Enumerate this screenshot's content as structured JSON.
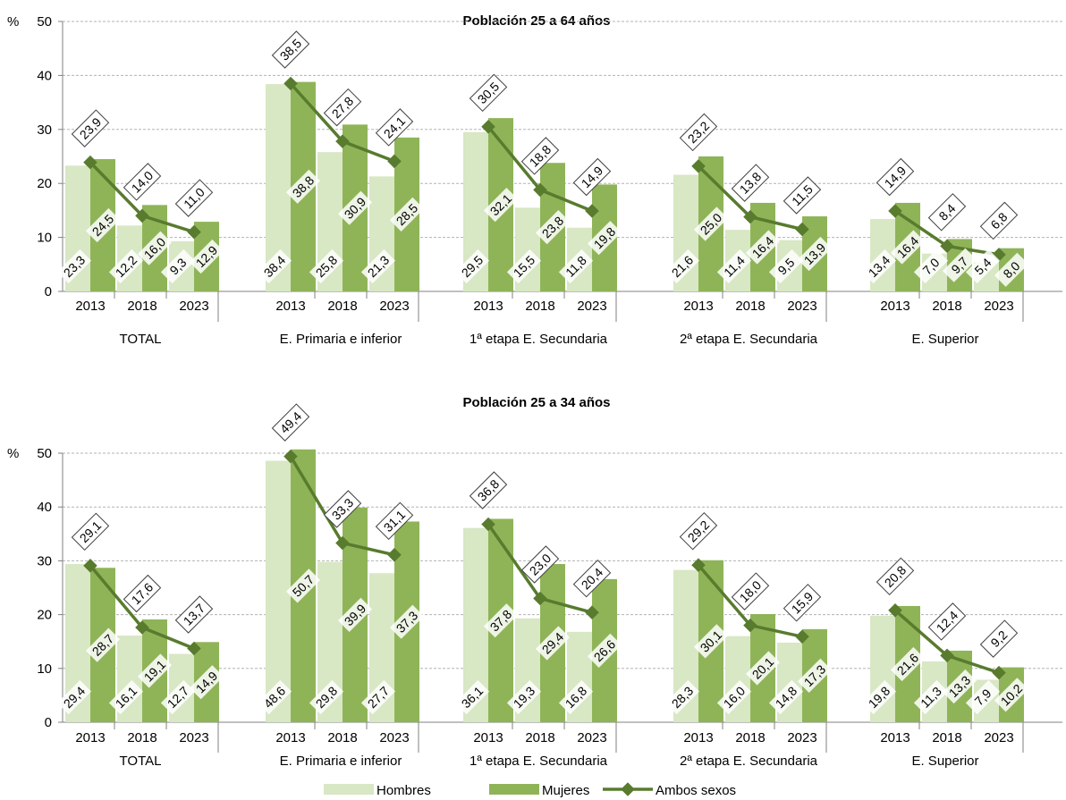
{
  "colors": {
    "hombres": "#d8e7c4",
    "mujeres": "#8fb458",
    "ambos": "#587b2e",
    "grid": "#b3b3b3",
    "axis": "#808080",
    "label_border": "#404040"
  },
  "legend": {
    "position": "bottom-center",
    "hombres": "Hombres",
    "mujeres": "Mujeres",
    "ambos": "Ambos sexos"
  },
  "chart_data": [
    {
      "type": "bar",
      "title": "Población 25 a 64 años",
      "ylabel": "%",
      "ylim": [
        0,
        50
      ],
      "yticks": [
        "0",
        "10",
        "20",
        "30",
        "40",
        "50"
      ],
      "grid": true,
      "groups": [
        "TOTAL",
        "E. Primaria e inferior",
        "1ª etapa E. Secundaria",
        "2ª etapa E. Secundaria",
        "E. Superior"
      ],
      "years": [
        "2013",
        "2018",
        "2023"
      ],
      "series": [
        {
          "name": "Hombres",
          "type": "bar",
          "values": [
            23.3,
            12.2,
            9.3,
            38.4,
            25.8,
            21.3,
            29.5,
            15.5,
            11.8,
            21.6,
            11.4,
            9.5,
            13.4,
            7.0,
            5.4
          ],
          "labels": [
            "23,3",
            "12,2",
            "9,3",
            "38,4",
            "25,8",
            "21,3",
            "29,5",
            "15,5",
            "11,8",
            "21,6",
            "11,4",
            "9,5",
            "13,4",
            "7,0",
            "5,4"
          ]
        },
        {
          "name": "Mujeres",
          "type": "bar",
          "values": [
            24.5,
            16.0,
            12.9,
            38.8,
            30.9,
            28.5,
            32.1,
            23.8,
            19.8,
            25.0,
            16.4,
            13.9,
            16.4,
            9.7,
            8.0
          ],
          "labels": [
            "24,5",
            "16,0",
            "12,9",
            "38,8",
            "30,9",
            "28,5",
            "32,1",
            "23,8",
            "19,8",
            "25,0",
            "16,4",
            "13,9",
            "16,4",
            "9,7",
            "8,0"
          ]
        },
        {
          "name": "Ambos sexos",
          "type": "line",
          "values": [
            23.9,
            14.0,
            11.0,
            38.5,
            27.8,
            24.1,
            30.5,
            18.8,
            14.9,
            23.2,
            13.8,
            11.5,
            14.9,
            8.4,
            6.8
          ],
          "labels": [
            "23,9",
            "14,0",
            "11,0",
            "38,5",
            "27,8",
            "24,1",
            "30,5",
            "18,8",
            "14,9",
            "23,2",
            "13,8",
            "11,5",
            "14,9",
            "8,4",
            "6,8"
          ]
        }
      ]
    },
    {
      "type": "bar",
      "title": "Población 25 a 34 años",
      "ylabel": "%",
      "ylim": [
        0,
        50
      ],
      "yticks": [
        "0",
        "10",
        "20",
        "30",
        "40",
        "50"
      ],
      "grid": true,
      "groups": [
        "TOTAL",
        "E. Primaria e inferior",
        "1ª etapa E. Secundaria",
        "2ª etapa E. Secundaria",
        "E. Superior"
      ],
      "years": [
        "2013",
        "2018",
        "2023"
      ],
      "series": [
        {
          "name": "Hombres",
          "type": "bar",
          "values": [
            29.4,
            16.1,
            12.7,
            48.6,
            29.8,
            27.7,
            36.1,
            19.3,
            16.8,
            28.3,
            16.0,
            14.8,
            19.8,
            11.3,
            7.9
          ],
          "labels": [
            "29,4",
            "16,1",
            "12,7",
            "48,6",
            "29,8",
            "27,7",
            "36,1",
            "19,3",
            "16,8",
            "28,3",
            "16,0",
            "14,8",
            "19,8",
            "11,3",
            "7,9"
          ]
        },
        {
          "name": "Mujeres",
          "type": "bar",
          "values": [
            28.7,
            19.1,
            14.9,
            50.7,
            39.9,
            37.3,
            37.8,
            29.4,
            26.6,
            30.1,
            20.1,
            17.3,
            21.6,
            13.3,
            10.2
          ],
          "labels": [
            "28,7",
            "19,1",
            "14,9",
            "50,7",
            "39,9",
            "37,3",
            "37,8",
            "29,4",
            "26,6",
            "30,1",
            "20,1",
            "17,3",
            "21,6",
            "13,3",
            "10,2"
          ]
        },
        {
          "name": "Ambos sexos",
          "type": "line",
          "values": [
            29.1,
            17.6,
            13.7,
            49.4,
            33.3,
            31.1,
            36.8,
            23.0,
            20.4,
            29.2,
            18.0,
            15.9,
            20.8,
            12.4,
            9.2
          ],
          "labels": [
            "29,1",
            "17,6",
            "13,7",
            "49,4",
            "33,3",
            "31,1",
            "36,8",
            "23,0",
            "20,4",
            "29,2",
            "18,0",
            "15,9",
            "20,8",
            "12,4",
            "9,2"
          ]
        }
      ]
    }
  ]
}
